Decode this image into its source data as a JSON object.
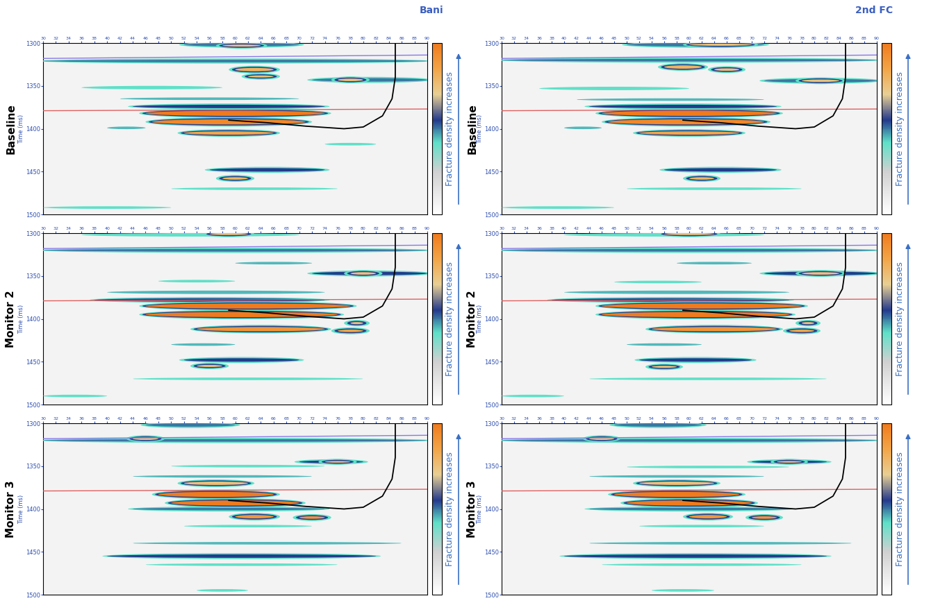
{
  "chart_data": {
    "type": "seismic_sections",
    "columns": [
      "Bani",
      "2nd FC"
    ],
    "rows": [
      "Baseline",
      "Monitor 2",
      "Monitor 3"
    ],
    "ylabel": "Time (ms)",
    "ylim": [
      1300,
      1500
    ],
    "yticks": [
      1300,
      1350,
      1400,
      1450,
      1500
    ],
    "xlim": [
      30,
      90
    ],
    "xticks": [
      30,
      32,
      34,
      36,
      38,
      40,
      42,
      44,
      46,
      48,
      50,
      52,
      54,
      56,
      58,
      60,
      62,
      64,
      66,
      68,
      70,
      72,
      74,
      76,
      78,
      80,
      82,
      84,
      86,
      88,
      90
    ],
    "colorbar": {
      "label": "Fracture density increases",
      "range": [
        0,
        1
      ]
    },
    "horizons": [
      {
        "color": "#8878e8",
        "x": [
          30,
          90
        ],
        "t": [
          1318,
          1314
        ]
      },
      {
        "color": "#e06060",
        "x": [
          30,
          90
        ],
        "t": [
          1379,
          1377
        ]
      }
    ],
    "well": {
      "color": "#000000",
      "x": [
        85,
        85,
        84.5,
        83,
        80,
        77,
        71,
        65,
        59
      ],
      "t": [
        1300,
        1340,
        1365,
        1385,
        1398,
        1400,
        1397,
        1393,
        1390
      ]
    },
    "panels": [
      [
        [
          {
            "x0": 30,
            "x1": 90,
            "t": 1321,
            "h": 3,
            "level": 0.5
          },
          {
            "x0": 52,
            "x1": 70,
            "t": 1302,
            "h": 4,
            "level": 0.5
          },
          {
            "x0": 58,
            "x1": 64,
            "t": 1303,
            "h": 2.5,
            "level": 0.75
          },
          {
            "x0": 60,
            "x1": 66,
            "t": 1331,
            "h": 4,
            "level": 0.8
          },
          {
            "x0": 72,
            "x1": 90,
            "t": 1343,
            "h": 4,
            "level": 0.5
          },
          {
            "x0": 76,
            "x1": 80,
            "t": 1343,
            "h": 3,
            "level": 0.75
          },
          {
            "x0": 62,
            "x1": 66,
            "t": 1339,
            "h": 2.5,
            "level": 0.75
          },
          {
            "x0": 36,
            "x1": 58,
            "t": 1352,
            "h": 4,
            "level": 0.42
          },
          {
            "x0": 42,
            "x1": 70,
            "t": 1365,
            "h": 3,
            "level": 0.45
          },
          {
            "x0": 44,
            "x1": 74,
            "t": 1374,
            "h": 4,
            "level": 0.55
          },
          {
            "x0": 46,
            "x1": 74,
            "t": 1382,
            "h": 6,
            "level": 1.0
          },
          {
            "x0": 47,
            "x1": 71,
            "t": 1392,
            "h": 6,
            "level": 0.95
          },
          {
            "x0": 52,
            "x1": 66,
            "t": 1405,
            "h": 4,
            "level": 0.85
          },
          {
            "x0": 40,
            "x1": 46,
            "t": 1399,
            "h": 3,
            "level": 0.45
          },
          {
            "x0": 74,
            "x1": 82,
            "t": 1418,
            "h": 3,
            "level": 0.42
          },
          {
            "x0": 56,
            "x1": 74,
            "t": 1448,
            "h": 4,
            "level": 0.55
          },
          {
            "x0": 58,
            "x1": 62,
            "t": 1458,
            "h": 3,
            "level": 0.8
          },
          {
            "x0": 50,
            "x1": 76,
            "t": 1470,
            "h": 3,
            "level": 0.42
          },
          {
            "x0": 30,
            "x1": 50,
            "t": 1492,
            "h": 3,
            "level": 0.42
          }
        ],
        [
          {
            "x0": 30,
            "x1": 90,
            "t": 1320,
            "h": 3,
            "level": 0.5
          },
          {
            "x0": 50,
            "x1": 72,
            "t": 1302,
            "h": 4,
            "level": 0.5
          },
          {
            "x0": 60,
            "x1": 70,
            "t": 1302,
            "h": 2.5,
            "level": 0.75
          },
          {
            "x0": 56,
            "x1": 62,
            "t": 1328,
            "h": 4,
            "level": 0.8
          },
          {
            "x0": 64,
            "x1": 68,
            "t": 1331,
            "h": 3,
            "level": 0.75
          },
          {
            "x0": 72,
            "x1": 90,
            "t": 1344,
            "h": 4,
            "level": 0.5
          },
          {
            "x0": 78,
            "x1": 84,
            "t": 1344,
            "h": 3,
            "level": 0.75
          },
          {
            "x0": 36,
            "x1": 60,
            "t": 1353,
            "h": 4,
            "level": 0.42
          },
          {
            "x0": 42,
            "x1": 72,
            "t": 1366,
            "h": 3,
            "level": 0.45
          },
          {
            "x0": 44,
            "x1": 74,
            "t": 1374,
            "h": 4,
            "level": 0.55
          },
          {
            "x0": 46,
            "x1": 74,
            "t": 1382,
            "h": 6,
            "level": 1.0
          },
          {
            "x0": 47,
            "x1": 72,
            "t": 1392,
            "h": 6,
            "level": 0.95
          },
          {
            "x0": 52,
            "x1": 68,
            "t": 1405,
            "h": 4,
            "level": 0.85
          },
          {
            "x0": 40,
            "x1": 46,
            "t": 1399,
            "h": 3,
            "level": 0.45
          },
          {
            "x0": 56,
            "x1": 74,
            "t": 1448,
            "h": 4,
            "level": 0.55
          },
          {
            "x0": 60,
            "x1": 64,
            "t": 1458,
            "h": 3,
            "level": 0.8
          },
          {
            "x0": 50,
            "x1": 78,
            "t": 1470,
            "h": 3,
            "level": 0.42
          },
          {
            "x0": 30,
            "x1": 48,
            "t": 1492,
            "h": 3,
            "level": 0.42
          }
        ]
      ],
      [
        [
          {
            "x0": 30,
            "x1": 90,
            "t": 1320,
            "h": 3,
            "level": 0.5
          },
          {
            "x0": 36,
            "x1": 70,
            "t": 1302,
            "h": 4,
            "level": 0.42
          },
          {
            "x0": 56,
            "x1": 62,
            "t": 1301,
            "h": 2.5,
            "level": 0.75
          },
          {
            "x0": 60,
            "x1": 72,
            "t": 1335,
            "h": 3,
            "level": 0.45
          },
          {
            "x0": 72,
            "x1": 90,
            "t": 1347,
            "h": 4,
            "level": 0.55
          },
          {
            "x0": 78,
            "x1": 82,
            "t": 1347,
            "h": 3,
            "level": 0.75
          },
          {
            "x0": 48,
            "x1": 60,
            "t": 1356,
            "h": 3,
            "level": 0.42
          },
          {
            "x0": 40,
            "x1": 74,
            "t": 1369,
            "h": 4,
            "level": 0.45
          },
          {
            "x0": 38,
            "x1": 74,
            "t": 1378,
            "h": 4,
            "level": 0.55
          },
          {
            "x0": 46,
            "x1": 78,
            "t": 1385,
            "h": 6,
            "level": 1.0
          },
          {
            "x0": 46,
            "x1": 76,
            "t": 1395,
            "h": 6,
            "level": 1.0
          },
          {
            "x0": 54,
            "x1": 74,
            "t": 1412,
            "h": 5,
            "level": 0.9
          },
          {
            "x0": 76,
            "x1": 80,
            "t": 1414,
            "h": 3,
            "level": 0.85
          },
          {
            "x0": 78,
            "x1": 80,
            "t": 1405,
            "h": 2.5,
            "level": 0.75
          },
          {
            "x0": 50,
            "x1": 60,
            "t": 1430,
            "h": 3,
            "level": 0.45
          },
          {
            "x0": 52,
            "x1": 70,
            "t": 1448,
            "h": 4,
            "level": 0.55
          },
          {
            "x0": 54,
            "x1": 58,
            "t": 1455,
            "h": 2.5,
            "level": 0.75
          },
          {
            "x0": 44,
            "x1": 80,
            "t": 1470,
            "h": 3,
            "level": 0.42
          },
          {
            "x0": 30,
            "x1": 40,
            "t": 1490,
            "h": 3,
            "level": 0.42
          }
        ],
        [
          {
            "x0": 30,
            "x1": 90,
            "t": 1320,
            "h": 3,
            "level": 0.5
          },
          {
            "x0": 40,
            "x1": 72,
            "t": 1302,
            "h": 4,
            "level": 0.42
          },
          {
            "x0": 56,
            "x1": 64,
            "t": 1301,
            "h": 2.5,
            "level": 0.75
          },
          {
            "x0": 58,
            "x1": 70,
            "t": 1335,
            "h": 3,
            "level": 0.45
          },
          {
            "x0": 72,
            "x1": 90,
            "t": 1347,
            "h": 4,
            "level": 0.55
          },
          {
            "x0": 78,
            "x1": 84,
            "t": 1347,
            "h": 3,
            "level": 0.75
          },
          {
            "x0": 48,
            "x1": 62,
            "t": 1357,
            "h": 3,
            "level": 0.42
          },
          {
            "x0": 40,
            "x1": 76,
            "t": 1369,
            "h": 4,
            "level": 0.45
          },
          {
            "x0": 38,
            "x1": 76,
            "t": 1378,
            "h": 4,
            "level": 0.55
          },
          {
            "x0": 46,
            "x1": 78,
            "t": 1385,
            "h": 6,
            "level": 1.0
          },
          {
            "x0": 46,
            "x1": 76,
            "t": 1395,
            "h": 6,
            "level": 1.0
          },
          {
            "x0": 54,
            "x1": 74,
            "t": 1412,
            "h": 5,
            "level": 0.9
          },
          {
            "x0": 76,
            "x1": 80,
            "t": 1414,
            "h": 3,
            "level": 0.85
          },
          {
            "x0": 78,
            "x1": 80,
            "t": 1405,
            "h": 2.5,
            "level": 0.75
          },
          {
            "x0": 50,
            "x1": 62,
            "t": 1430,
            "h": 3,
            "level": 0.45
          },
          {
            "x0": 52,
            "x1": 70,
            "t": 1448,
            "h": 4,
            "level": 0.55
          },
          {
            "x0": 54,
            "x1": 58,
            "t": 1456,
            "h": 2.5,
            "level": 0.75
          },
          {
            "x0": 44,
            "x1": 82,
            "t": 1470,
            "h": 3,
            "level": 0.42
          },
          {
            "x0": 30,
            "x1": 40,
            "t": 1490,
            "h": 3,
            "level": 0.42
          }
        ]
      ],
      [
        [
          {
            "x0": 30,
            "x1": 90,
            "t": 1320,
            "h": 3,
            "level": 0.5
          },
          {
            "x0": 46,
            "x1": 60,
            "t": 1302,
            "h": 4,
            "level": 0.5
          },
          {
            "x0": 44,
            "x1": 48,
            "t": 1318,
            "h": 3,
            "level": 0.75
          },
          {
            "x0": 70,
            "x1": 80,
            "t": 1345,
            "h": 3,
            "level": 0.55
          },
          {
            "x0": 74,
            "x1": 78,
            "t": 1345,
            "h": 2,
            "level": 0.75
          },
          {
            "x0": 50,
            "x1": 74,
            "t": 1350,
            "h": 3,
            "level": 0.42
          },
          {
            "x0": 44,
            "x1": 72,
            "t": 1362,
            "h": 3,
            "level": 0.45
          },
          {
            "x0": 52,
            "x1": 62,
            "t": 1370,
            "h": 4,
            "level": 0.75
          },
          {
            "x0": 48,
            "x1": 66,
            "t": 1383,
            "h": 6,
            "level": 1.0
          },
          {
            "x0": 50,
            "x1": 70,
            "t": 1393,
            "h": 6,
            "level": 1.0
          },
          {
            "x0": 44,
            "x1": 74,
            "t": 1400,
            "h": 3,
            "level": 0.5
          },
          {
            "x0": 60,
            "x1": 66,
            "t": 1409,
            "h": 4,
            "level": 0.9
          },
          {
            "x0": 70,
            "x1": 74,
            "t": 1410,
            "h": 3,
            "level": 0.9
          },
          {
            "x0": 52,
            "x1": 72,
            "t": 1420,
            "h": 3,
            "level": 0.42
          },
          {
            "x0": 44,
            "x1": 86,
            "t": 1440,
            "h": 3,
            "level": 0.45
          },
          {
            "x0": 40,
            "x1": 82,
            "t": 1455,
            "h": 4,
            "level": 0.55
          },
          {
            "x0": 46,
            "x1": 76,
            "t": 1465,
            "h": 3,
            "level": 0.42
          },
          {
            "x0": 54,
            "x1": 62,
            "t": 1495,
            "h": 3,
            "level": 0.42
          }
        ],
        [
          {
            "x0": 30,
            "x1": 90,
            "t": 1320,
            "h": 3,
            "level": 0.5
          },
          {
            "x0": 48,
            "x1": 62,
            "t": 1302,
            "h": 4,
            "level": 0.5
          },
          {
            "x0": 44,
            "x1": 48,
            "t": 1318,
            "h": 3,
            "level": 0.75
          },
          {
            "x0": 70,
            "x1": 82,
            "t": 1345,
            "h": 3,
            "level": 0.55
          },
          {
            "x0": 74,
            "x1": 78,
            "t": 1345,
            "h": 2,
            "level": 0.75
          },
          {
            "x0": 50,
            "x1": 76,
            "t": 1351,
            "h": 3,
            "level": 0.42
          },
          {
            "x0": 44,
            "x1": 72,
            "t": 1362,
            "h": 3,
            "level": 0.45
          },
          {
            "x0": 52,
            "x1": 64,
            "t": 1370,
            "h": 4,
            "level": 0.75
          },
          {
            "x0": 48,
            "x1": 68,
            "t": 1383,
            "h": 6,
            "level": 1.0
          },
          {
            "x0": 50,
            "x1": 70,
            "t": 1393,
            "h": 6,
            "level": 1.0
          },
          {
            "x0": 44,
            "x1": 76,
            "t": 1400,
            "h": 3,
            "level": 0.5
          },
          {
            "x0": 60,
            "x1": 66,
            "t": 1409,
            "h": 4,
            "level": 0.9
          },
          {
            "x0": 70,
            "x1": 74,
            "t": 1410,
            "h": 3,
            "level": 0.9
          },
          {
            "x0": 52,
            "x1": 72,
            "t": 1420,
            "h": 3,
            "level": 0.42
          },
          {
            "x0": 44,
            "x1": 86,
            "t": 1440,
            "h": 3,
            "level": 0.45
          },
          {
            "x0": 40,
            "x1": 82,
            "t": 1455,
            "h": 4,
            "level": 0.55
          },
          {
            "x0": 46,
            "x1": 78,
            "t": 1465,
            "h": 3,
            "level": 0.42
          },
          {
            "x0": 54,
            "x1": 64,
            "t": 1495,
            "h": 3,
            "level": 0.42
          }
        ]
      ]
    ]
  }
}
